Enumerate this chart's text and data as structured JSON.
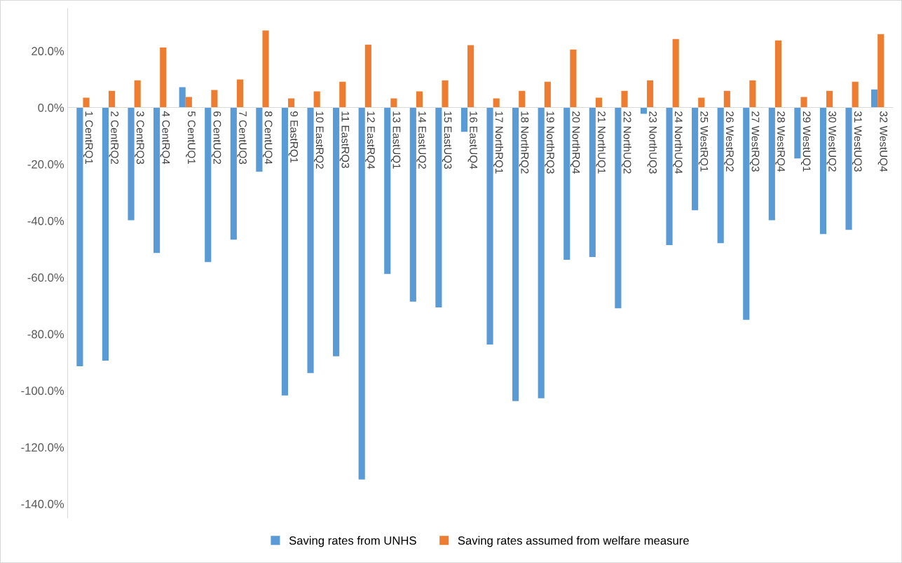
{
  "chart_data": {
    "type": "bar",
    "categories": [
      "1 CentRQ1",
      "2 CentRQ2",
      "3 CentRQ3",
      "4 CentRQ4",
      "5 CentUQ1",
      "6 CentUQ2",
      "7 CentUQ3",
      "8 CentUQ4",
      "9 EastRQ1",
      "10 EastRQ2",
      "11 EastRQ3",
      "12 EastRQ4",
      "13 EastUQ1",
      "14 EastUQ2",
      "15 EastUQ3",
      "16 EastUQ4",
      "17 NorthRQ1",
      "18 NorthRQ2",
      "19 NorthRQ3",
      "20 NorthRQ4",
      "21 NorthUQ1",
      "22 NorthUQ2",
      "23 NorthUQ3",
      "24 NorthUQ4",
      "25 WestRQ1",
      "26 WestRQ2",
      "27 WestRQ3",
      "28 WestRQ4",
      "29 WestUQ1",
      "30 WestUQ2",
      "31 WestUQ3",
      "32 WestUQ4"
    ],
    "series": [
      {
        "name": "Saving rates from UNHS",
        "color": "#5b9bd5",
        "values": [
          -91.4,
          -89.4,
          -39.8,
          -51.4,
          7.2,
          -54.6,
          -46.7,
          -22.7,
          -101.7,
          -93.8,
          -87.9,
          -131.4,
          -58.8,
          -68.6,
          -70.6,
          -8.6,
          -83.7,
          -103.7,
          -102.7,
          -53.8,
          -52.8,
          -70.9,
          -2.2,
          -48.6,
          -36.3,
          -47.9,
          -75,
          -39.8,
          -18,
          -44.7,
          -43.2,
          6.4
        ]
      },
      {
        "name": "Saving rates assumed from welfare measure",
        "color": "#ed7d31",
        "values": [
          3.5,
          5.9,
          9.6,
          21.2,
          3.7,
          6.2,
          9.9,
          27.2,
          3.2,
          5.7,
          9.1,
          22.2,
          3.2,
          5.7,
          9.6,
          22,
          3.2,
          5.9,
          9.1,
          20.5,
          3.5,
          5.9,
          9.6,
          24.2,
          3.5,
          5.9,
          9.6,
          23.7,
          3.7,
          5.9,
          9.1,
          25.9
        ]
      }
    ],
    "ylim": [
      -145,
      35
    ],
    "yticks": [
      {
        "value": 20,
        "label": "20.0%"
      },
      {
        "value": 0,
        "label": "0.0%"
      },
      {
        "value": -20,
        "label": "-20.0%"
      },
      {
        "value": -40,
        "label": "-40.0%"
      },
      {
        "value": -60,
        "label": "-60.0%"
      },
      {
        "value": -80,
        "label": "-80.0%"
      },
      {
        "value": -100,
        "label": "-100.0%"
      },
      {
        "value": -120,
        "label": "-120.0%"
      },
      {
        "value": -140,
        "label": "-140.0%"
      }
    ],
    "grid": false,
    "legend": "bottom"
  }
}
